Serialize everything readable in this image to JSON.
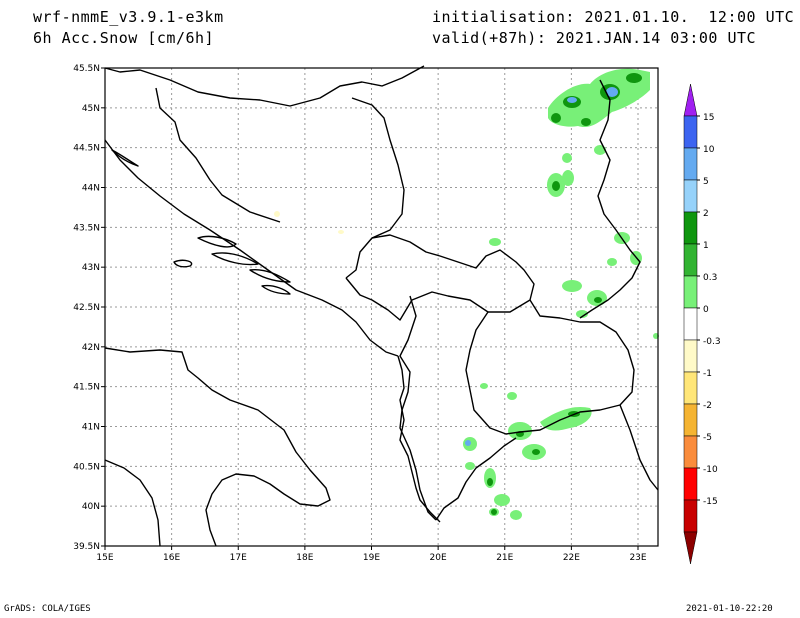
{
  "header": {
    "model": "wrf-nmmE_v3.9.1-e3km",
    "field": "6h Acc.Snow [cm/6h]",
    "init": "initialisation: 2021.01.10.  12:00 UTC",
    "valid": "valid(+87h): 2021.JAN.14 03:00 UTC"
  },
  "footer": {
    "credit": "GrADS: COLA/IGES",
    "stamp": "2021-01-10-22:20"
  },
  "map": {
    "lon_ticks": [
      "15E",
      "16E",
      "17E",
      "18E",
      "19E",
      "20E",
      "21E",
      "22E",
      "23E"
    ],
    "lat_ticks": [
      "39.5N",
      "40N",
      "40.5N",
      "41N",
      "41.5N",
      "42N",
      "42.5N",
      "43N",
      "43.5N",
      "44N",
      "44.5N",
      "45N",
      "45.5N"
    ],
    "lon_range": [
      15,
      23.3
    ],
    "lat_range": [
      39.5,
      45.5
    ]
  },
  "colorbar": {
    "labels": [
      "15",
      "10",
      "5",
      "2",
      "1",
      "0.3",
      "0",
      "-0.3",
      "-1",
      "-2",
      "-5",
      "-10",
      "-15"
    ],
    "colors": [
      "#a020f0",
      "#3c64f0",
      "#64aaf0",
      "#96d2fa",
      "#0f960f",
      "#32b432",
      "#78f078",
      "#ffffff",
      "#fffac8",
      "#ffe678",
      "#f5b432",
      "#fa8c3c",
      "#ff0000",
      "#c80000",
      "#8c0000"
    ]
  },
  "snow_colors": {
    "light": "#78f078",
    "medium": "#32b432",
    "heavy": "#0f960f",
    "very_heavy": "#64aaf0",
    "pale_yellow": "#fffac8"
  }
}
